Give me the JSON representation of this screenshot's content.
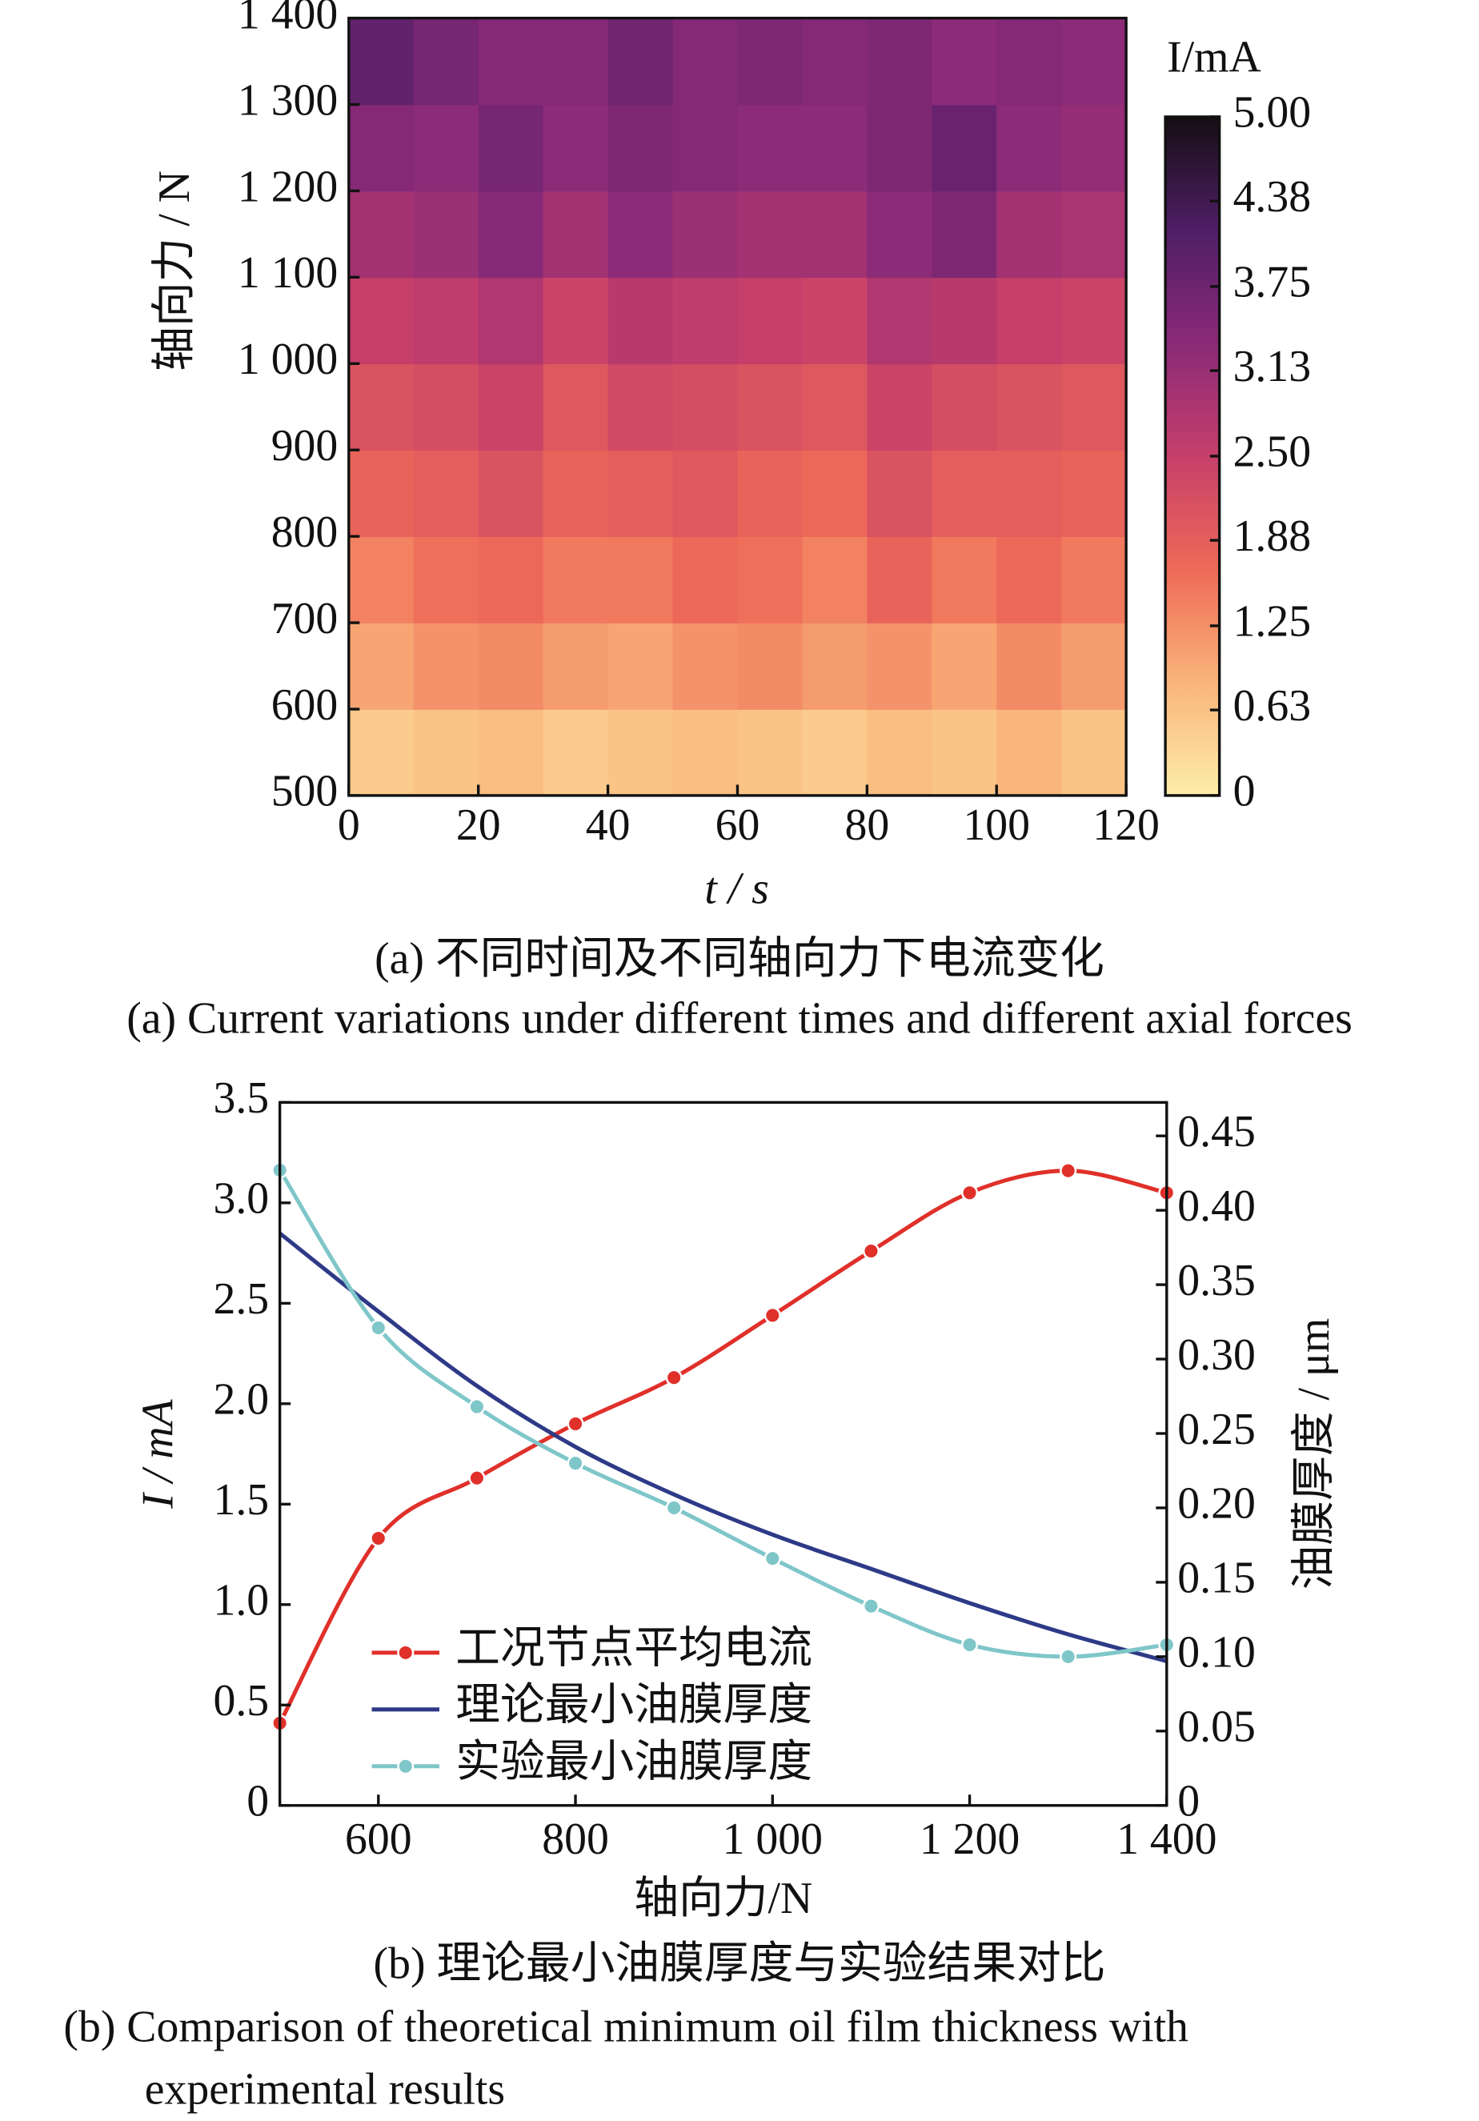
{
  "chart_data": [
    {
      "type": "heatmap",
      "x_label": "t / s",
      "y_label": "轴向力 / N",
      "colorbar_label": "I/mA",
      "caption_zh": "(a)  不同时间及不同轴向力下电流变化",
      "caption_en": "(a)  Current variations under different times and different axial forces",
      "xbins": [
        0,
        10,
        20,
        30,
        40,
        50,
        60,
        70,
        80,
        90,
        100,
        110,
        120
      ],
      "ybins": [
        500,
        600,
        700,
        800,
        900,
        1000,
        1100,
        1200,
        1300,
        1400
      ],
      "z": [
        [
          0.5,
          0.6,
          0.7,
          0.5,
          0.6,
          0.7,
          0.6,
          0.5,
          0.7,
          0.6,
          0.8,
          0.6
        ],
        [
          1.0,
          1.2,
          1.3,
          1.1,
          1.0,
          1.2,
          1.3,
          1.1,
          1.2,
          1.0,
          1.3,
          1.1
        ],
        [
          1.4,
          1.6,
          1.7,
          1.5,
          1.5,
          1.7,
          1.6,
          1.4,
          1.8,
          1.5,
          1.7,
          1.5
        ],
        [
          1.8,
          1.9,
          2.1,
          1.8,
          1.9,
          2.0,
          1.8,
          1.7,
          2.1,
          1.9,
          1.9,
          1.8
        ],
        [
          2.1,
          2.2,
          2.4,
          2.0,
          2.3,
          2.2,
          2.1,
          2.0,
          2.4,
          2.2,
          2.1,
          2.0
        ],
        [
          2.5,
          2.6,
          2.8,
          2.4,
          2.7,
          2.6,
          2.5,
          2.4,
          2.8,
          2.7,
          2.5,
          2.4
        ],
        [
          3.0,
          3.1,
          3.4,
          3.0,
          3.3,
          3.1,
          3.0,
          3.0,
          3.3,
          3.5,
          3.0,
          2.9
        ],
        [
          3.4,
          3.3,
          3.6,
          3.3,
          3.5,
          3.4,
          3.3,
          3.3,
          3.5,
          3.8,
          3.3,
          3.2
        ],
        [
          3.9,
          3.6,
          3.4,
          3.4,
          3.7,
          3.4,
          3.5,
          3.4,
          3.5,
          3.3,
          3.4,
          3.3
        ]
      ],
      "xlim": [
        0,
        120
      ],
      "xticks": [
        0,
        20,
        40,
        60,
        80,
        100,
        120
      ],
      "ylim": [
        500,
        1400
      ],
      "yticks": [
        500,
        600,
        700,
        800,
        900,
        {
          "value": 1000,
          "label": "1 000"
        },
        {
          "value": 1100,
          "label": "1 100"
        },
        {
          "value": 1200,
          "label": "1 200"
        },
        {
          "value": 1300,
          "label": "1 300"
        },
        {
          "value": 1400,
          "label": "1 400"
        }
      ],
      "clim": [
        0,
        5
      ],
      "cticks": [
        0,
        0.63,
        1.25,
        1.88,
        {
          "value": 2.5,
          "label": "2.50"
        },
        3.13,
        3.75,
        4.38,
        {
          "value": 5,
          "label": "5.00"
        }
      ],
      "colormap": [
        "#fdeea9",
        "#f9b47a",
        "#ee6a57",
        "#c63f6a",
        "#8a2a78",
        "#4f1e66",
        "#150e13"
      ]
    },
    {
      "type": "line",
      "x_label": "轴向力/N",
      "y_label": "I / mA",
      "y2_label": "油膜厚度 / μm",
      "caption_zh": "(b)  理论最小油膜厚度与实验结果对比",
      "caption_en": [
        "(b)  Comparison of theoretical minimum oil film thickness with",
        "experimental results"
      ],
      "x": [
        500,
        600,
        700,
        800,
        900,
        1000,
        1100,
        1200,
        1300,
        1400
      ],
      "series": [
        {
          "name": "工况节点平均电流",
          "color": "#e0302a",
          "marker": true,
          "values": [
            0.41,
            1.33,
            1.63,
            1.9,
            2.13,
            2.44,
            2.76,
            3.05,
            3.16,
            3.05
          ]
        },
        {
          "name": "理论最小油膜厚度",
          "color": "#2e3a87",
          "marker": false,
          "axis": "y2",
          "values": [
            0.3845,
            0.332,
            0.282,
            0.241,
            0.209,
            0.182,
            0.159,
            0.136,
            0.115,
            0.097
          ]
        },
        {
          "name": "实验最小油膜厚度",
          "color": "#7fc6c9",
          "marker": true,
          "axis": "y2",
          "values": [
            0.427,
            0.321,
            0.268,
            0.23,
            0.2,
            0.166,
            0.134,
            0.108,
            0.1,
            0.108
          ]
        }
      ],
      "xlim": [
        500,
        1400
      ],
      "xticks": [
        600,
        800,
        {
          "value": 1000,
          "label": "1 000"
        },
        {
          "value": 1200,
          "label": "1 200"
        },
        {
          "value": 1400,
          "label": "1 400"
        }
      ],
      "ylim": [
        0,
        3.5
      ],
      "yticks": [
        0,
        0.5,
        {
          "value": 1,
          "label": "1.0"
        },
        1.5,
        {
          "value": 2,
          "label": "2.0"
        },
        2.5,
        {
          "value": 3,
          "label": "3.0"
        },
        3.5
      ],
      "y2lim": [
        0,
        0.4725
      ],
      "y2ticks": [
        0,
        0.05,
        {
          "value": 0.1,
          "label": "0.10"
        },
        0.15,
        {
          "value": 0.2,
          "label": "0.20"
        },
        0.25,
        {
          "value": 0.3,
          "label": "0.30"
        },
        0.35,
        {
          "value": 0.4,
          "label": "0.40"
        },
        0.45
      ],
      "legend": "lower left"
    }
  ]
}
